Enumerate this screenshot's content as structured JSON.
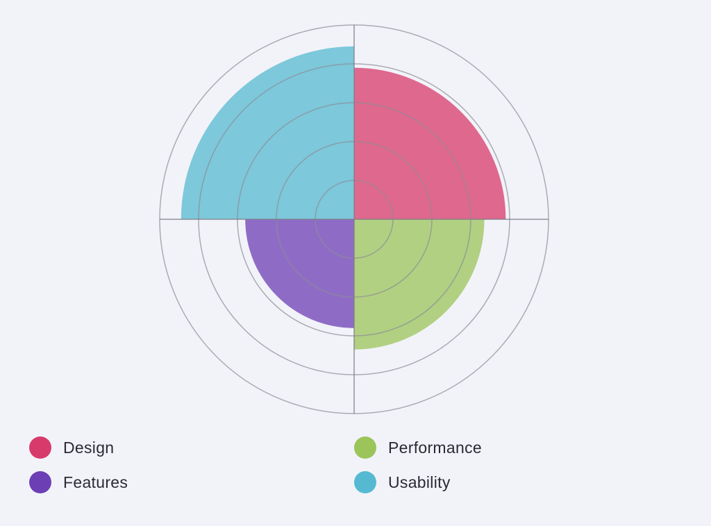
{
  "chart_data": {
    "type": "polar-area",
    "title": "",
    "categories": [
      "Design",
      "Performance",
      "Features",
      "Usability"
    ],
    "values": [
      78,
      67,
      56,
      89
    ],
    "colors": [
      "#d83a6b",
      "#9bc45b",
      "#6c3fb5",
      "#56b9d2"
    ],
    "fill_opacity": 0.75,
    "radial_axis": {
      "min": 0,
      "max": 100,
      "step": 20,
      "tick_labels_shown": false
    },
    "grid": true,
    "legend_position": "bottom",
    "start_angle_deg": 0,
    "direction": "clockwise"
  },
  "legend": {
    "items": [
      {
        "label": "Design",
        "color": "#d83a6b"
      },
      {
        "label": "Performance",
        "color": "#9bc45b"
      },
      {
        "label": "Features",
        "color": "#6c3fb5"
      },
      {
        "label": "Usability",
        "color": "#56b9d2"
      }
    ]
  }
}
